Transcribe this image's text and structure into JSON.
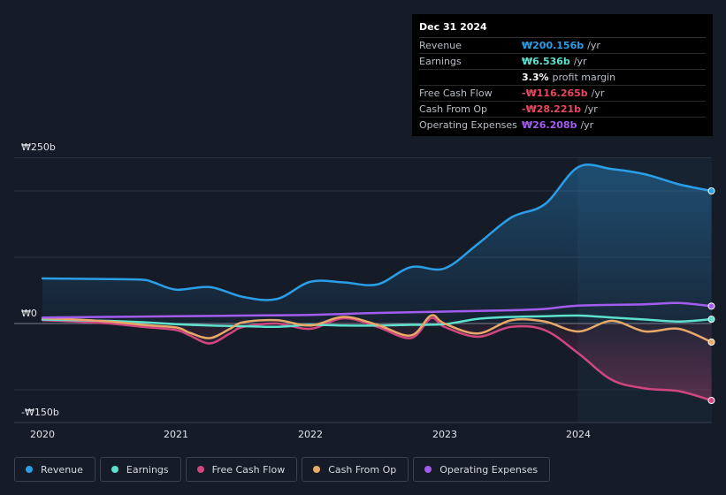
{
  "tooltip": {
    "date": "Dec 31 2024",
    "rows": [
      {
        "label": "Revenue",
        "value": "₩200.156b",
        "unit": "/yr",
        "color": "#2b9ee8"
      },
      {
        "label": "Earnings",
        "value": "₩6.536b",
        "unit": "/yr",
        "color": "#5de0cd"
      },
      {
        "label": "",
        "value": "3.3%",
        "unit": "profit margin",
        "color": "#ffffff"
      },
      {
        "label": "Free Cash Flow",
        "value": "-₩116.265b",
        "unit": "/yr",
        "color": "#e8475f"
      },
      {
        "label": "Cash From Op",
        "value": "-₩28.221b",
        "unit": "/yr",
        "color": "#e8475f"
      },
      {
        "label": "Operating Expenses",
        "value": "₩26.208b",
        "unit": "/yr",
        "color": "#a35cf0"
      }
    ]
  },
  "legend": [
    {
      "label": "Revenue",
      "color": "#2b9ee8"
    },
    {
      "label": "Earnings",
      "color": "#5de0cd"
    },
    {
      "label": "Free Cash Flow",
      "color": "#d0477f"
    },
    {
      "label": "Cash From Op",
      "color": "#e8a968"
    },
    {
      "label": "Operating Expenses",
      "color": "#a35cf0"
    }
  ],
  "chart_data": {
    "type": "line",
    "title": "",
    "xlabel": "",
    "ylabel": "",
    "ylim": [
      -150,
      250
    ],
    "ytick_labels": [
      "₩250b",
      "₩0",
      "-₩150b"
    ],
    "xtick_labels": [
      "2020",
      "2021",
      "2022",
      "2023",
      "2024"
    ],
    "xlim": [
      2019.8,
      2025.0
    ],
    "series": [
      {
        "name": "Revenue",
        "color": "#2b9ee8",
        "x": [
          2020.0,
          2020.5,
          2020.75,
          2020.83,
          2021.0,
          2021.25,
          2021.5,
          2021.75,
          2022.0,
          2022.25,
          2022.5,
          2022.75,
          2023.0,
          2023.25,
          2023.5,
          2023.75,
          2024.0,
          2024.25,
          2024.5,
          2024.75,
          2025.0
        ],
        "y": [
          68,
          67,
          66,
          62,
          51,
          55,
          40,
          37,
          63,
          62,
          59,
          85,
          83,
          120,
          160,
          180,
          236,
          233,
          225,
          210,
          200
        ]
      },
      {
        "name": "Earnings",
        "color": "#5de0cd",
        "x": [
          2020.0,
          2020.25,
          2020.5,
          2020.75,
          2021.0,
          2021.25,
          2021.5,
          2021.75,
          2022.0,
          2022.25,
          2022.5,
          2022.75,
          2023.0,
          2023.25,
          2023.5,
          2023.75,
          2024.0,
          2024.25,
          2024.5,
          2024.75,
          2025.0
        ],
        "y": [
          6,
          5,
          4,
          2,
          -1,
          -3,
          -4,
          -5,
          -2,
          -3,
          -3,
          -2,
          -1,
          7,
          10,
          11,
          12,
          9,
          6,
          3,
          6.5
        ]
      },
      {
        "name": "Free Cash Flow",
        "color": "#d0477f",
        "x": [
          2020.0,
          2020.25,
          2020.5,
          2020.75,
          2021.0,
          2021.1,
          2021.25,
          2021.4,
          2021.5,
          2021.75,
          2022.0,
          2022.25,
          2022.5,
          2022.75,
          2022.9,
          2023.0,
          2023.25,
          2023.5,
          2023.75,
          2024.0,
          2024.25,
          2024.5,
          2024.75,
          2025.0
        ],
        "y": [
          5,
          3,
          0,
          -5,
          -10,
          -18,
          -30,
          -15,
          -5,
          0,
          -8,
          8,
          -5,
          -22,
          8,
          -5,
          -20,
          -5,
          -10,
          -45,
          -85,
          -98,
          -102,
          -116
        ]
      },
      {
        "name": "Cash From Op",
        "color": "#e8a968",
        "x": [
          2020.0,
          2020.25,
          2020.5,
          2020.75,
          2021.0,
          2021.1,
          2021.25,
          2021.4,
          2021.5,
          2021.75,
          2022.0,
          2022.25,
          2022.5,
          2022.75,
          2022.9,
          2023.0,
          2023.25,
          2023.5,
          2023.75,
          2024.0,
          2024.25,
          2024.5,
          2024.75,
          2025.0
        ],
        "y": [
          8,
          6,
          3,
          -2,
          -6,
          -14,
          -22,
          -8,
          2,
          5,
          -3,
          10,
          -2,
          -18,
          12,
          0,
          -15,
          5,
          3,
          -12,
          4,
          -12,
          -8,
          -28
        ]
      },
      {
        "name": "Operating Expenses",
        "color": "#a35cf0",
        "x": [
          2020.0,
          2020.5,
          2021.0,
          2021.5,
          2022.0,
          2022.5,
          2023.0,
          2023.5,
          2023.75,
          2024.0,
          2024.5,
          2024.75,
          2025.0
        ],
        "y": [
          9,
          10,
          11,
          12,
          13,
          16,
          18,
          20,
          22,
          27,
          29,
          31,
          26.2
        ]
      }
    ]
  }
}
